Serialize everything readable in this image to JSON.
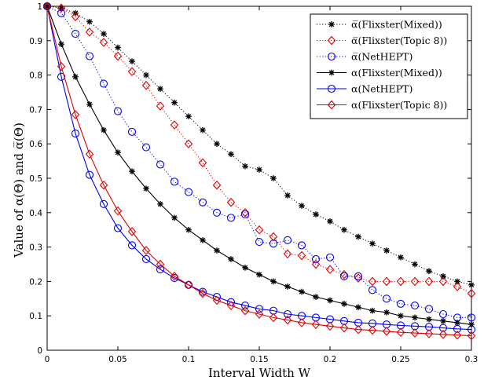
{
  "chart_data": {
    "type": "line",
    "title": "",
    "xlabel": "Interval Width W",
    "ylabel": "Value of α(Θ) and α̅(Θ)",
    "xlim": [
      0,
      0.3
    ],
    "ylim": [
      0,
      1
    ],
    "x_ticks": [
      "0",
      "0.05",
      "0.1",
      "0.15",
      "0.2",
      "0.25",
      "0.3"
    ],
    "y_ticks": [
      "0",
      "0.1",
      "0.2",
      "0.3",
      "0.4",
      "0.5",
      "0.6",
      "0.7",
      "0.8",
      "0.9",
      "1"
    ],
    "grid": false,
    "legend_position": "top-right",
    "x": [
      0,
      0.01,
      0.02,
      0.03,
      0.04,
      0.05,
      0.06,
      0.07,
      0.08,
      0.09,
      0.1,
      0.11,
      0.12,
      0.13,
      0.14,
      0.15,
      0.16,
      0.17,
      0.18,
      0.19,
      0.2,
      0.21,
      0.22,
      0.23,
      0.24,
      0.25,
      0.26,
      0.27,
      0.28,
      0.29,
      0.3
    ],
    "series": [
      {
        "name": "α̅(Flixster(Mixed))",
        "color": "#000000",
        "line": "dotted",
        "marker": "star",
        "values": [
          1.0,
          0.995,
          0.98,
          0.955,
          0.92,
          0.88,
          0.84,
          0.8,
          0.76,
          0.72,
          0.68,
          0.64,
          0.6,
          0.57,
          0.535,
          0.525,
          0.5,
          0.45,
          0.42,
          0.395,
          0.375,
          0.35,
          0.33,
          0.31,
          0.29,
          0.27,
          0.25,
          0.23,
          0.215,
          0.2,
          0.19
        ]
      },
      {
        "name": "α̅(Flixster(Topic 8))",
        "color": "#e00000",
        "line": "dotted",
        "marker": "diamond",
        "values": [
          1.0,
          0.995,
          0.97,
          0.925,
          0.895,
          0.855,
          0.81,
          0.77,
          0.71,
          0.655,
          0.6,
          0.545,
          0.48,
          0.43,
          0.4,
          0.35,
          0.33,
          0.28,
          0.275,
          0.25,
          0.235,
          0.22,
          0.21,
          0.2,
          0.2,
          0.2,
          0.2,
          0.2,
          0.2,
          0.185,
          0.165
        ]
      },
      {
        "name": "α̅(NetHEPT)",
        "color": "#0000ee",
        "line": "dotted",
        "marker": "circle",
        "values": [
          1.0,
          0.98,
          0.92,
          0.855,
          0.775,
          0.695,
          0.635,
          0.59,
          0.54,
          0.49,
          0.46,
          0.43,
          0.4,
          0.385,
          0.395,
          0.315,
          0.31,
          0.32,
          0.305,
          0.265,
          0.27,
          0.215,
          0.215,
          0.175,
          0.15,
          0.135,
          0.13,
          0.12,
          0.105,
          0.095,
          0.095
        ]
      },
      {
        "name": "α(Flixster(Mixed))",
        "color": "#000000",
        "line": "solid",
        "marker": "star",
        "values": [
          1.0,
          0.89,
          0.795,
          0.715,
          0.64,
          0.575,
          0.52,
          0.47,
          0.425,
          0.385,
          0.35,
          0.32,
          0.29,
          0.265,
          0.24,
          0.22,
          0.2,
          0.185,
          0.17,
          0.155,
          0.145,
          0.135,
          0.125,
          0.115,
          0.11,
          0.1,
          0.095,
          0.09,
          0.085,
          0.08,
          0.075
        ]
      },
      {
        "name": "α(NetHEPT)",
        "color": "#0000ee",
        "line": "solid",
        "marker": "circle",
        "values": [
          1.0,
          0.795,
          0.63,
          0.51,
          0.425,
          0.355,
          0.305,
          0.265,
          0.235,
          0.21,
          0.19,
          0.17,
          0.155,
          0.14,
          0.13,
          0.12,
          0.115,
          0.105,
          0.1,
          0.095,
          0.09,
          0.085,
          0.08,
          0.078,
          0.075,
          0.072,
          0.07,
          0.068,
          0.065,
          0.062,
          0.06
        ]
      },
      {
        "name": "α(Flixster(Topic 8))",
        "color": "#e00000",
        "line": "solid",
        "marker": "diamond",
        "values": [
          1.0,
          0.825,
          0.685,
          0.57,
          0.48,
          0.405,
          0.345,
          0.29,
          0.25,
          0.215,
          0.19,
          0.165,
          0.145,
          0.13,
          0.115,
          0.105,
          0.095,
          0.088,
          0.08,
          0.075,
          0.07,
          0.065,
          0.06,
          0.058,
          0.055,
          0.052,
          0.05,
          0.048,
          0.046,
          0.044,
          0.042
        ]
      }
    ]
  }
}
